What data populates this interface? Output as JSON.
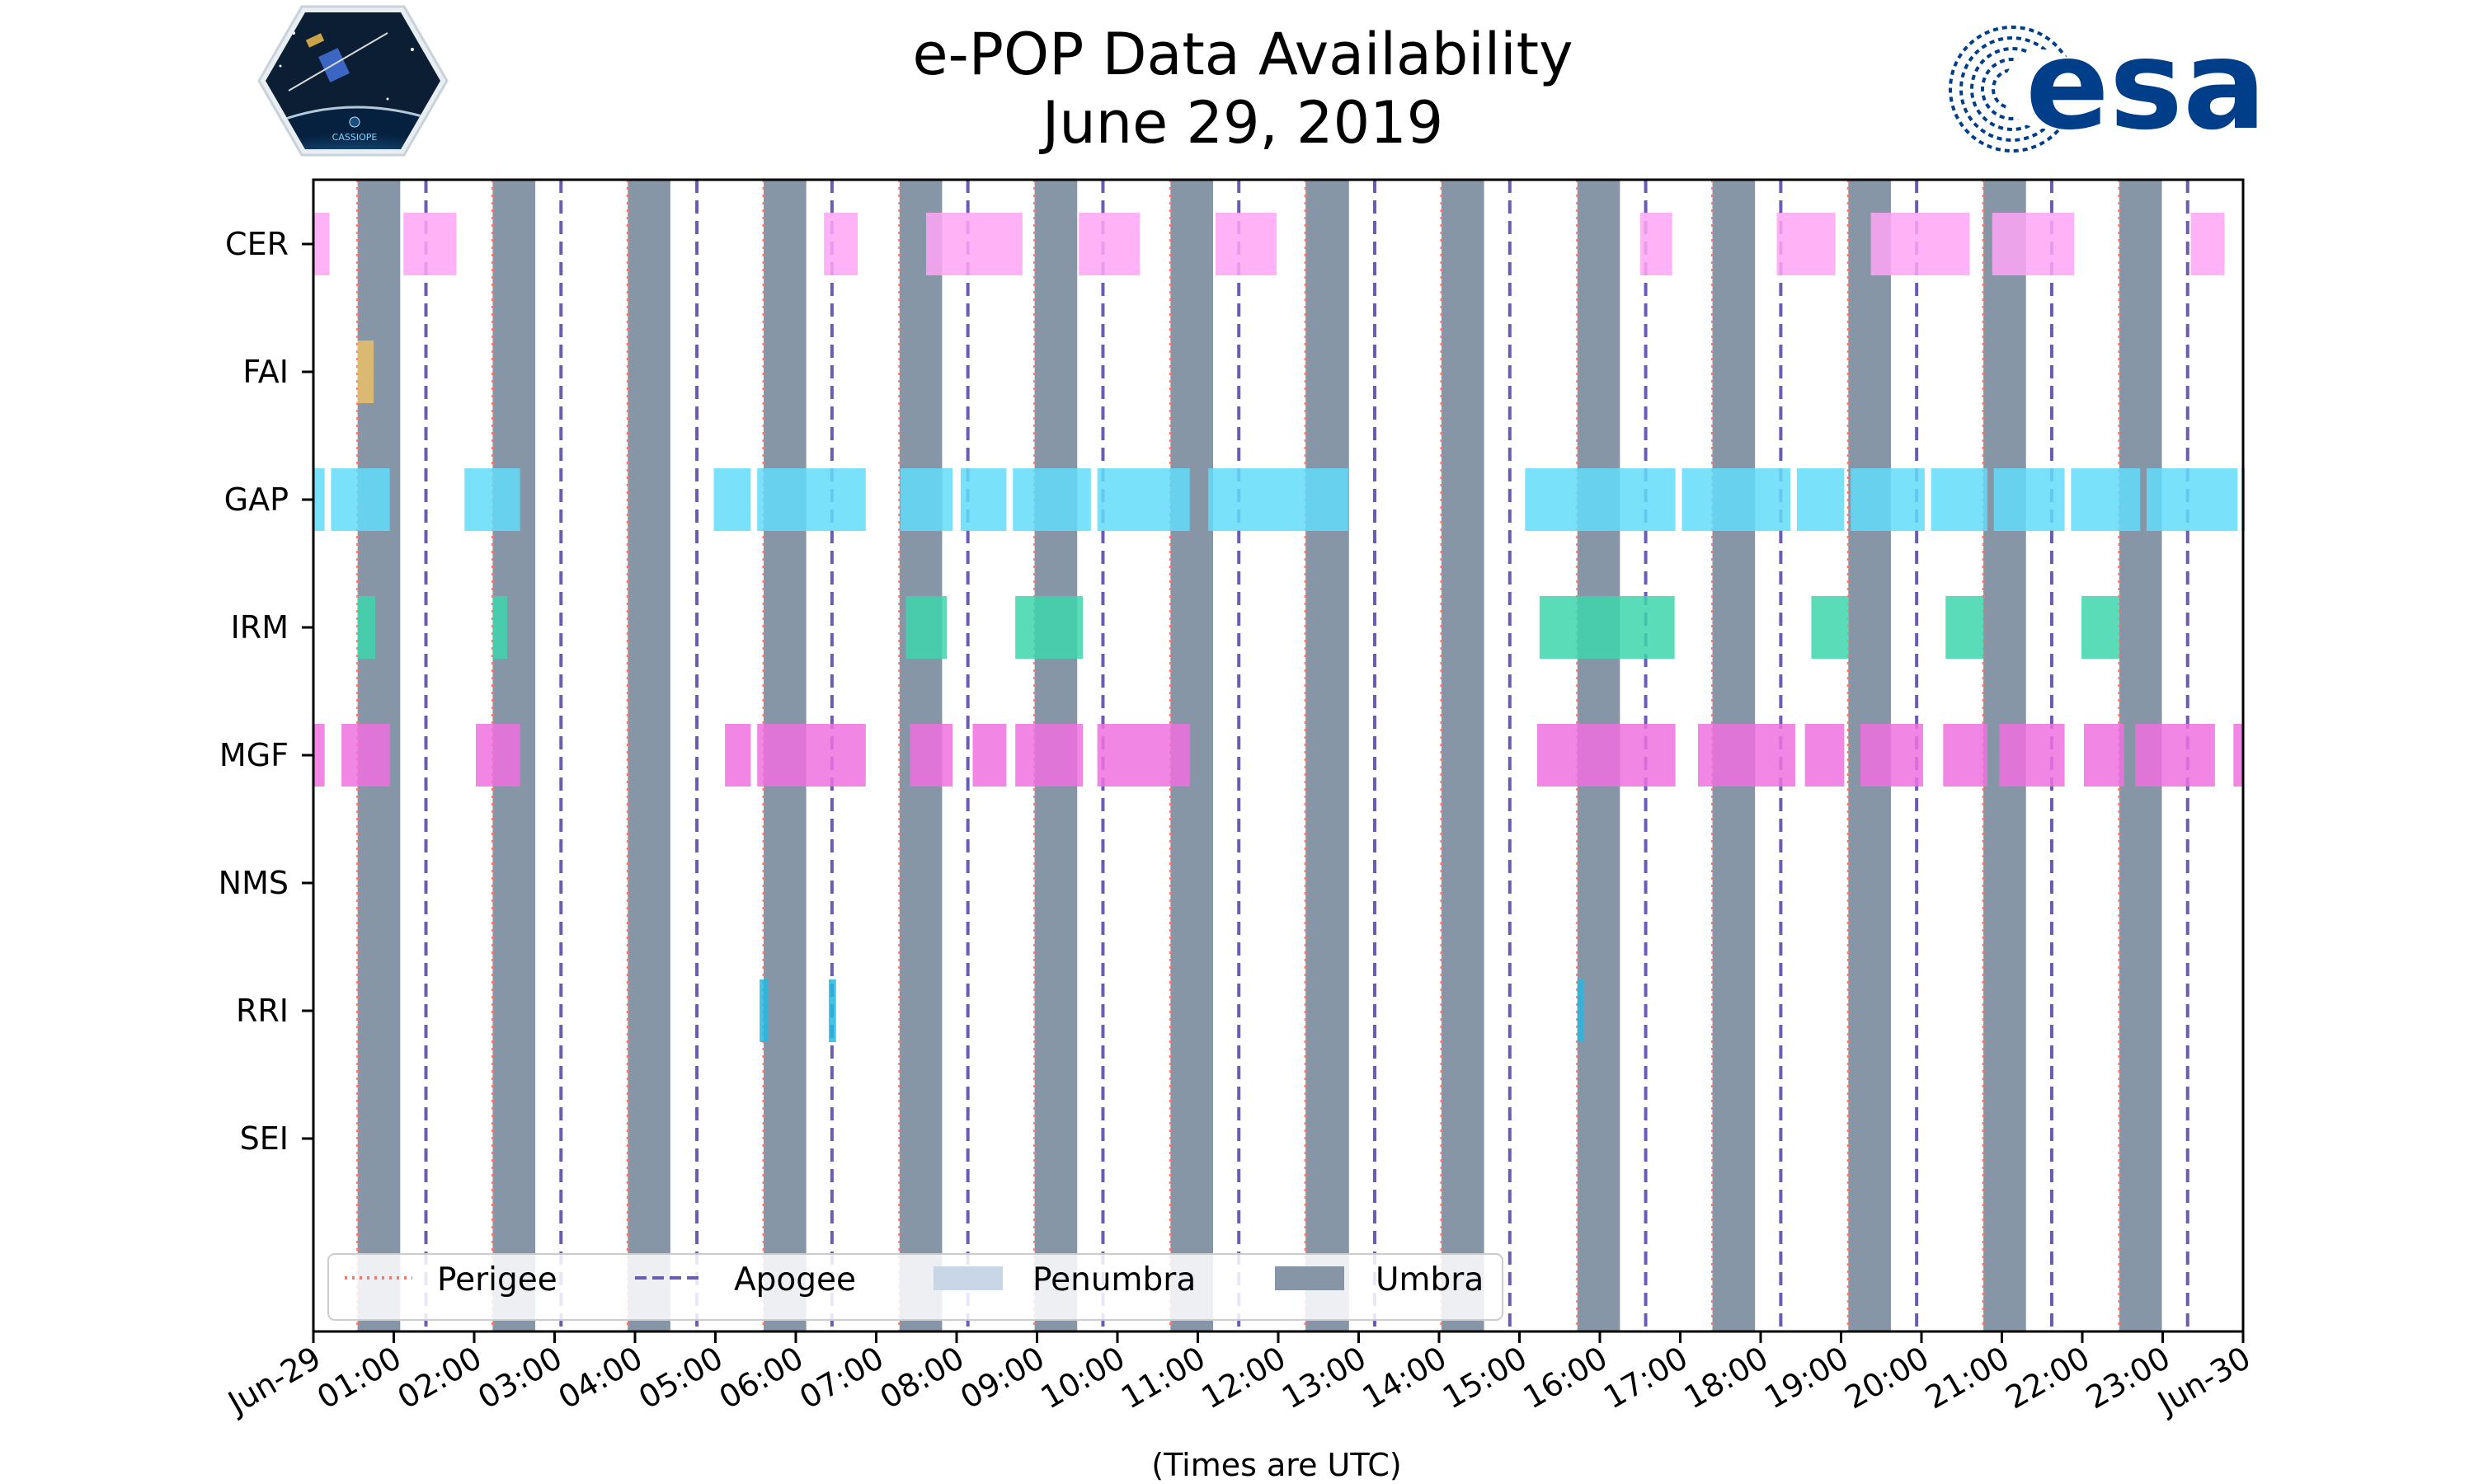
{
  "chart_data": {
    "type": "timeline",
    "title": "e-POP Data Availability",
    "subtitle": "June 29, 2019",
    "xlabel": "(Times are UTC)",
    "xlim_hours": [
      0,
      24
    ],
    "x_tick_labels": [
      "Jun-29",
      "01:00",
      "02:00",
      "03:00",
      "04:00",
      "05:00",
      "06:00",
      "07:00",
      "08:00",
      "09:00",
      "10:00",
      "11:00",
      "12:00",
      "13:00",
      "14:00",
      "15:00",
      "16:00",
      "17:00",
      "18:00",
      "19:00",
      "20:00",
      "21:00",
      "22:00",
      "23:00",
      "Jun-30"
    ],
    "instruments": [
      "CER",
      "FAI",
      "GAP",
      "IRM",
      "MGF",
      "NMS",
      "RRI",
      "SEI"
    ],
    "umbra_intervals_hours": [
      [
        0.55,
        1.08
      ],
      [
        2.23,
        2.76
      ],
      [
        3.91,
        4.44
      ],
      [
        5.6,
        6.13
      ],
      [
        7.29,
        7.82
      ],
      [
        8.97,
        9.5
      ],
      [
        10.66,
        11.19
      ],
      [
        12.34,
        12.88
      ],
      [
        14.03,
        14.56
      ],
      [
        15.72,
        16.25
      ],
      [
        17.4,
        17.93
      ],
      [
        19.09,
        19.62
      ],
      [
        20.77,
        21.3
      ],
      [
        22.46,
        22.99
      ]
    ],
    "perigee_hours": [
      0.55,
      2.23,
      3.91,
      5.6,
      7.29,
      8.97,
      10.66,
      12.34,
      14.03,
      15.72,
      17.4,
      19.09,
      20.77,
      22.46
    ],
    "apogee_hours": [
      1.4,
      3.08,
      4.77,
      6.45,
      8.14,
      9.82,
      11.51,
      13.2,
      14.88,
      16.57,
      18.25,
      19.94,
      21.62,
      23.31
    ],
    "availability": {
      "CER": [
        [
          0,
          0.2
        ],
        [
          1.12,
          1.78
        ],
        [
          6.35,
          6.77
        ],
        [
          7.62,
          8.82
        ],
        [
          9.52,
          10.28
        ],
        [
          11.22,
          11.98
        ],
        [
          16.5,
          16.9
        ],
        [
          18.2,
          18.93
        ],
        [
          19.37,
          20.6
        ],
        [
          20.88,
          21.9
        ],
        [
          23.35,
          23.77
        ]
      ],
      "FAI": [
        [
          0.55,
          0.75
        ]
      ],
      "GAP": [
        [
          0,
          0.14
        ],
        [
          0.22,
          0.95
        ],
        [
          1.88,
          2.57
        ],
        [
          4.98,
          5.44
        ],
        [
          5.52,
          6.87
        ],
        [
          7.3,
          7.95
        ],
        [
          8.05,
          8.62
        ],
        [
          8.7,
          9.67
        ],
        [
          9.75,
          10.9
        ],
        [
          11.13,
          12.87
        ],
        [
          15.07,
          16.94
        ],
        [
          17.02,
          18.37
        ],
        [
          18.45,
          19.04
        ],
        [
          19.12,
          20.04
        ],
        [
          20.12,
          20.82
        ],
        [
          20.9,
          21.78
        ],
        [
          21.86,
          22.72
        ],
        [
          22.8,
          23.93
        ],
        [
          23.98,
          24
        ]
      ],
      "IRM": [
        [
          0.55,
          0.77
        ],
        [
          2.23,
          2.41
        ],
        [
          7.37,
          7.88
        ],
        [
          8.73,
          9.57
        ],
        [
          15.25,
          16.93
        ],
        [
          18.63,
          19.09
        ],
        [
          20.3,
          20.77
        ],
        [
          21.99,
          22.46
        ]
      ],
      "MGF": [
        [
          0,
          0.14
        ],
        [
          0.35,
          0.95
        ],
        [
          2.02,
          2.57
        ],
        [
          5.12,
          5.44
        ],
        [
          5.52,
          6.87
        ],
        [
          7.42,
          7.95
        ],
        [
          8.2,
          8.62
        ],
        [
          8.73,
          9.57
        ],
        [
          9.75,
          10.9
        ],
        [
          15.22,
          16.94
        ],
        [
          17.22,
          18.43
        ],
        [
          18.55,
          19.04
        ],
        [
          19.24,
          20.02
        ],
        [
          20.27,
          20.82
        ],
        [
          20.97,
          21.78
        ],
        [
          22.02,
          22.52
        ],
        [
          22.66,
          23.65
        ],
        [
          23.88,
          24
        ]
      ],
      "NMS": [],
      "RRI": [
        [
          5.55,
          5.66
        ],
        [
          6.41,
          6.5
        ],
        [
          15.72,
          15.8
        ]
      ],
      "SEI": []
    },
    "series_colors": {
      "CER": "#ffa6f5",
      "FAI": "#ebc069",
      "GAP": "#63dcfa",
      "IRM": "#3dd6ad",
      "MGF": "#ef71df",
      "NMS": "#888888",
      "RRI": "#24b9e1",
      "SEI": "#888888"
    },
    "umbra_color": "#8796a7",
    "penumbra_color": "#c8d6e6",
    "perigee_color": "#f07a6e",
    "apogee_color": "#6a5cb0",
    "legend": {
      "location": "lower-left",
      "entries": [
        {
          "label": "Perigee",
          "style": "dotted-line"
        },
        {
          "label": "Apogee",
          "style": "dashed-line"
        },
        {
          "label": "Penumbra",
          "style": "patch"
        },
        {
          "label": "Umbra",
          "style": "patch"
        }
      ]
    }
  },
  "logos": {
    "left": {
      "name": "CASSIOPE mission badge",
      "text": "CASSIOPE"
    },
    "right": {
      "name": "ESA logo",
      "text": "esa"
    }
  }
}
